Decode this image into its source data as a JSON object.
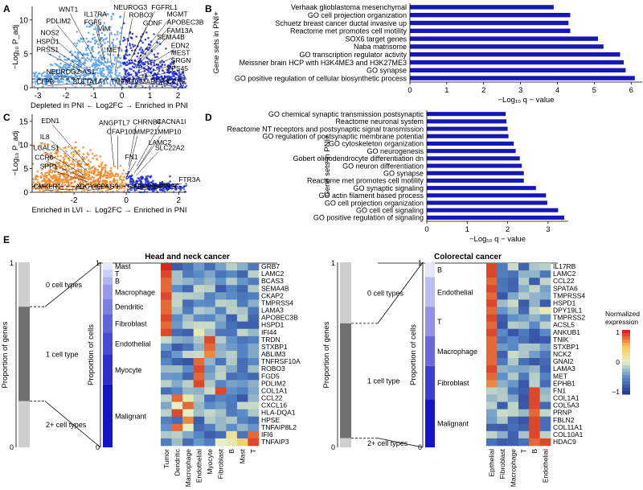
{
  "panel_letters": {
    "a": "A",
    "b": "B",
    "c": "C",
    "d": "D",
    "e": "E"
  },
  "colors": {
    "blue_dark": "#1c2bd6",
    "blue_light": "#5aa0ea",
    "orange": "#ef8a2b",
    "bar": "#1717b8",
    "grey_dark": "#707070",
    "grey_light": "#cfcfcf"
  },
  "chart_data": [
    {
      "id": "A",
      "type": "scatter",
      "ylabel": "−Log₁₀ P_adj",
      "xlabel_left": "Depleted in PNI",
      "xlabel_mid": " ← Log2FC → ",
      "xlabel_right": "Enriched in PNI",
      "xlim": [
        -3.2,
        2.3
      ],
      "ylim": [
        0,
        12
      ],
      "xticks": [
        -3,
        -2,
        -1,
        0,
        1,
        2
      ],
      "yticks": [
        0,
        5,
        10
      ],
      "threshold_y": 1.3,
      "density": [
        {
          "x": -2.6,
          "y": 2.3,
          "s": 0.9
        },
        {
          "x": -2.2,
          "y": 3.6,
          "s": 0.9
        },
        {
          "x": -1.7,
          "y": 5.4,
          "s": 1.0
        },
        {
          "x": -1.2,
          "y": 7.5,
          "s": 1.1
        },
        {
          "x": -0.7,
          "y": 9.8,
          "s": 1.1
        },
        {
          "x": -0.3,
          "y": 11.2,
          "s": 0.8
        },
        {
          "x": -0.6,
          "y": 4.5,
          "s": 2.0
        },
        {
          "x": 0.4,
          "y": 8.5,
          "s": 1.0
        },
        {
          "x": 0.9,
          "y": 6.5,
          "s": 1.0
        },
        {
          "x": 1.4,
          "y": 4.0,
          "s": 1.0
        },
        {
          "x": 1.9,
          "y": 2.4,
          "s": 0.8
        }
      ],
      "labels": [
        {
          "text": "WNT1",
          "x": -2.25,
          "y": 11.2
        },
        {
          "text": "IL17RA",
          "x": -1.35,
          "y": 10.5
        },
        {
          "text": "NEUROG3",
          "x": -0.3,
          "y": 11.5
        },
        {
          "text": "FGFRL1",
          "x": 1.05,
          "y": 11.5
        },
        {
          "text": "PDLIM2",
          "x": -2.7,
          "y": 9.5
        },
        {
          "text": "FGF5",
          "x": -1.35,
          "y": 9.3
        },
        {
          "text": "ROBO3",
          "x": 0.25,
          "y": 10.4
        },
        {
          "text": "MGMT",
          "x": 1.6,
          "y": 10.5
        },
        {
          "text": "VIM",
          "x": -0.85,
          "y": 8.4
        },
        {
          "text": "GDNF",
          "x": 0.75,
          "y": 9.2
        },
        {
          "text": "APOBEC3B",
          "x": 1.6,
          "y": 9.3
        },
        {
          "text": "NOS2",
          "x": -2.9,
          "y": 7.8
        },
        {
          "text": "FAM13A",
          "x": 1.6,
          "y": 8.1
        },
        {
          "text": "HSPD1",
          "x": -3.05,
          "y": 6.5
        },
        {
          "text": "SEMA4B",
          "x": 1.25,
          "y": 7.1
        },
        {
          "text": "MET",
          "x": -0.55,
          "y": 5.2
        },
        {
          "text": "EDN2",
          "x": 1.75,
          "y": 5.9
        },
        {
          "text": "PRSS1",
          "x": -3.05,
          "y": 5.3
        },
        {
          "text": "MEST",
          "x": 1.75,
          "y": 4.8
        },
        {
          "text": "SRGN",
          "x": 1.75,
          "y": 3.7
        },
        {
          "text": "VPS45",
          "x": 1.6,
          "y": 2.5
        },
        {
          "text": "NEUROG2-AS1",
          "x": -2.7,
          "y": 2.0
        },
        {
          "text": "CLPB",
          "x": -3.05,
          "y": 0.55
        },
        {
          "text": "SULTA1A1",
          "x": -1.75,
          "y": 0.55
        },
        {
          "text": "TMEM79",
          "x": -0.4,
          "y": 0.55
        },
        {
          "text": "MARCKS",
          "x": 0.65,
          "y": 0.55
        },
        {
          "text": "CCN5",
          "x": 1.6,
          "y": 0.55
        }
      ]
    },
    {
      "id": "B",
      "type": "bar",
      "ylabel": "Gene sets in PNI+",
      "xlabel": "−Log₁₀ q − value",
      "xlim": [
        0,
        6.3
      ],
      "xticks": [
        0,
        1,
        2,
        3,
        4,
        5,
        6
      ],
      "categories": [
        "Verhaak glioblastoma mesenchymal",
        "GO cell projection organization",
        "Schuetz breast cancer ductal invasive up",
        "Reactome met promotes cell motility",
        "SOX6 target genes",
        "Naba matrisome",
        "GO transcription regulator activity",
        "Meissner brain HCP with H3K4ME3 and H3K27ME3",
        "GO synapse",
        "GO positive regulation of cellular biosynthetic process"
      ],
      "values": [
        3.9,
        4.35,
        4.3,
        4.35,
        5.1,
        5.25,
        5.7,
        5.8,
        5.85,
        6.1
      ]
    },
    {
      "id": "C",
      "type": "scatter",
      "ylabel": "−Log₁₀ P_adj",
      "xlabel_left": "Enriched in LVI",
      "xlabel_mid": " ← Log2FC → ",
      "xlabel_right": "Enriched in PNI",
      "xlim": [
        -3.6,
        2.3
      ],
      "ylim": [
        0,
        16.5
      ],
      "xticks": [
        -2,
        0,
        2
      ],
      "yticks": [
        0,
        5,
        10,
        15
      ],
      "threshold_y": 1.3,
      "density": [
        {
          "x": -3.1,
          "y": 3.5,
          "s": 1.2
        },
        {
          "x": -2.5,
          "y": 6.5,
          "s": 1.4
        },
        {
          "x": -2.0,
          "y": 9.5,
          "s": 1.3
        },
        {
          "x": -1.5,
          "y": 8.0,
          "s": 1.2
        },
        {
          "x": -1.0,
          "y": 6.0,
          "s": 1.3
        },
        {
          "x": -0.6,
          "y": 4.0,
          "s": 1.5
        },
        {
          "x": -2.8,
          "y": 11.0,
          "s": 0.9
        },
        {
          "x": 0.5,
          "y": 3.5,
          "s": 1.0
        },
        {
          "x": 1.0,
          "y": 2.5,
          "s": 0.8
        },
        {
          "x": 1.5,
          "y": 2.0,
          "s": 0.7
        }
      ],
      "labels": [
        {
          "text": "EDN1",
          "x": -3.25,
          "y": 14.6
        },
        {
          "text": "ANGPTL7",
          "x": -1.05,
          "y": 14.2
        },
        {
          "text": "CHRNB4",
          "x": 0.25,
          "y": 14.4
        },
        {
          "text": "CACNA1I",
          "x": 1.15,
          "y": 14.5
        },
        {
          "text": "CFAP100",
          "x": -0.75,
          "y": 12.3
        },
        {
          "text": "MMP21",
          "x": 0.3,
          "y": 12.3
        },
        {
          "text": "MMP10",
          "x": 1.2,
          "y": 12.3
        },
        {
          "text": "IL8",
          "x": -3.3,
          "y": 11.2
        },
        {
          "text": "LAMC2",
          "x": 0.85,
          "y": 10.0
        },
        {
          "text": "LGALS1",
          "x": -3.55,
          "y": 8.9
        },
        {
          "text": "SLC22A2",
          "x": 1.1,
          "y": 8.9
        },
        {
          "text": "CCR6",
          "x": -3.5,
          "y": 6.9
        },
        {
          "text": "FN1",
          "x": -0.05,
          "y": 7.0
        },
        {
          "text": "SPP1",
          "x": -3.3,
          "y": 5.0
        },
        {
          "text": "FTR3A",
          "x": 2.0,
          "y": 2.2
        },
        {
          "text": "CMKLR1",
          "x": -3.55,
          "y": 0.75
        },
        {
          "text": "ADCY6",
          "x": -1.95,
          "y": 0.75
        },
        {
          "text": "SPAG9",
          "x": -1.15,
          "y": 0.75
        },
        {
          "text": "GABRR1",
          "x": 0.05,
          "y": 0.75
        },
        {
          "text": "GRIN2C",
          "x": 1.05,
          "y": 0.75
        }
      ]
    },
    {
      "id": "D",
      "type": "bar",
      "ylabel": "Gene sets in PNI+",
      "xlabel": "−Log₁₀ q − value",
      "xlim": [
        0,
        3.5
      ],
      "xticks": [
        0,
        1,
        2,
        3
      ],
      "categories": [
        "GO chemical synaptic transmission postsynaptic",
        "Reactome neuronal system",
        "Reactome NT receptors and postsynaptic signal transmission",
        "GO regulation of postsynaptic membrane potential",
        "GO cytoskeleton organization",
        "GO neurogenesis",
        "Gobert oligodendrocyte differentiation dn",
        "GO neuron differentiation",
        "GO synapse",
        "Reactome met promotes cell motility",
        "GO synaptic signaling",
        "GO actin filament based process",
        "GO cell projection organization",
        "GO cell cell signaling",
        "GO positive regulation of signaling"
      ],
      "values": [
        1.95,
        1.97,
        2.0,
        2.02,
        2.15,
        2.2,
        2.3,
        2.35,
        2.4,
        2.4,
        2.7,
        2.95,
        2.98,
        3.25,
        3.4
      ]
    },
    {
      "id": "E1",
      "type": "heatmap",
      "title": "Head and neck cancer",
      "prop_genes_label": "Proportion of genes",
      "prop_cells_label": "Proportion of cells",
      "stack_groups": [
        "0 cell types",
        "1 cell type",
        "2+ cell types"
      ],
      "stack_props": [
        0.24,
        0.51,
        0.25
      ],
      "cell_types": [
        "Mast",
        "T",
        "B",
        "Macrophage",
        "Dendritic",
        "Fibroblast",
        "Endothelial",
        "Myocyte",
        "Malignant"
      ],
      "cell_props": [
        0.04,
        0.04,
        0.04,
        0.08,
        0.08,
        0.1,
        0.12,
        0.16,
        0.34
      ],
      "columns": [
        "Tumor",
        "Dendritic",
        "Macrophage",
        "Endothelial",
        "Myocyte",
        "Fibroblast",
        "B",
        "Mast",
        "T"
      ],
      "genes": [
        "GRB7",
        "LAMC2",
        "BCAS3",
        "SEMA4B",
        "CKAP2",
        "TMPRSS4",
        "LAMA3",
        "APOBEC3B",
        "HSPD1",
        "IFI44",
        "TRDN",
        "STXBP1",
        "ABLIM3",
        "TNFRSF10A",
        "ROBO3",
        "FGD5",
        "PDLIM2",
        "COL1A1",
        "CCL22",
        "CXCL16",
        "HLA-DQA1",
        "HPSE",
        "TNFAIP8L2",
        "IFI6",
        "TNFAIP3"
      ],
      "hot_cells": [
        [
          0,
          0,
          1.0
        ],
        [
          1,
          0,
          0.95
        ],
        [
          2,
          0,
          0.9
        ],
        [
          3,
          0,
          0.9
        ],
        [
          4,
          0,
          0.95
        ],
        [
          5,
          0,
          0.9
        ],
        [
          6,
          0,
          0.9
        ],
        [
          7,
          0,
          0.95
        ],
        [
          8,
          0,
          0.9
        ],
        [
          9,
          0,
          0.95
        ],
        [
          8,
          3,
          0.45
        ],
        [
          9,
          3,
          0.55
        ],
        [
          2,
          2,
          0.35
        ],
        [
          0,
          5,
          0.3
        ],
        [
          10,
          4,
          0.95
        ],
        [
          11,
          4,
          0.9
        ],
        [
          12,
          4,
          0.85
        ],
        [
          13,
          3,
          0.9
        ],
        [
          14,
          3,
          0.95
        ],
        [
          15,
          3,
          0.9
        ],
        [
          16,
          3,
          0.95
        ],
        [
          10,
          3,
          0.4
        ],
        [
          12,
          3,
          0.45
        ],
        [
          17,
          5,
          0.95
        ],
        [
          18,
          1,
          0.9
        ],
        [
          18,
          2,
          0.55
        ],
        [
          19,
          2,
          0.9
        ],
        [
          20,
          1,
          0.95
        ],
        [
          20,
          2,
          0.5
        ],
        [
          21,
          2,
          0.85
        ],
        [
          22,
          1,
          0.9
        ],
        [
          22,
          2,
          0.5
        ],
        [
          23,
          8,
          0.9
        ],
        [
          23,
          6,
          0.6
        ],
        [
          24,
          8,
          0.95
        ],
        [
          24,
          7,
          0.7
        ],
        [
          24,
          6,
          0.55
        ],
        [
          17,
          4,
          0.45
        ],
        [
          19,
          1,
          0.5
        ],
        [
          21,
          6,
          0.4
        ],
        [
          23,
          0,
          0.4
        ],
        [
          24,
          5,
          0.5
        ],
        [
          16,
          4,
          0.4
        ],
        [
          13,
          4,
          0.35
        ]
      ]
    },
    {
      "id": "E2",
      "type": "heatmap",
      "title": "Colorectal cancer",
      "prop_genes_label": "Proportion of genes",
      "prop_cells_label": "Proportion of cells",
      "stack_groups": [
        "0 cell types",
        "1 cell type",
        "2+ cell types"
      ],
      "stack_props": [
        0.33,
        0.62,
        0.05
      ],
      "cell_types": [
        "B",
        "Endothelial",
        "T",
        "Macrophage",
        "Fibroblast",
        "Malignant"
      ],
      "cell_props": [
        0.08,
        0.16,
        0.16,
        0.16,
        0.18,
        0.26
      ],
      "columns": [
        "Epithelial",
        "Fibroblast",
        "Macrophage",
        "T",
        "B",
        "Endothelial"
      ],
      "genes": [
        "IL17RB",
        "LAMC2",
        "CCL22",
        "SPATA6",
        "TMPRSS4",
        "HSPD1",
        "DPY19L1",
        "TMPRSS2",
        "ACSL5",
        "ANKUB1",
        "TNIK",
        "STXBP1",
        "NCK2",
        "GNAI2",
        "LAMA3",
        "MET",
        "EPHB1",
        "FN1",
        "COL1A1",
        "COL5A3",
        "PRNP",
        "FBLN2",
        "COL11A1",
        "COL10A1",
        "HDAC9"
      ],
      "hot_cells": [
        [
          0,
          0,
          0.95
        ],
        [
          1,
          0,
          0.95
        ],
        [
          2,
          0,
          0.9
        ],
        [
          3,
          0,
          0.95
        ],
        [
          4,
          0,
          0.9
        ],
        [
          5,
          0,
          0.95
        ],
        [
          6,
          0,
          0.9
        ],
        [
          7,
          0,
          0.95
        ],
        [
          8,
          0,
          0.9
        ],
        [
          9,
          0,
          0.95
        ],
        [
          10,
          0,
          0.9
        ],
        [
          11,
          0,
          0.9
        ],
        [
          12,
          0,
          0.9
        ],
        [
          13,
          0,
          0.9
        ],
        [
          14,
          0,
          0.95
        ],
        [
          15,
          0,
          0.9
        ],
        [
          16,
          0,
          0.85
        ],
        [
          6,
          5,
          0.55
        ],
        [
          5,
          4,
          0.35
        ],
        [
          12,
          2,
          0.45
        ],
        [
          13,
          2,
          0.4
        ],
        [
          14,
          1,
          0.35
        ],
        [
          17,
          4,
          0.95
        ],
        [
          18,
          4,
          0.95
        ],
        [
          19,
          4,
          0.95
        ],
        [
          20,
          4,
          0.9
        ],
        [
          21,
          4,
          0.95
        ],
        [
          22,
          4,
          0.95
        ],
        [
          23,
          4,
          0.95
        ],
        [
          24,
          4,
          0.9
        ],
        [
          24,
          5,
          0.95
        ],
        [
          17,
          1,
          0.4
        ],
        [
          20,
          1,
          0.45
        ],
        [
          21,
          1,
          0.4
        ]
      ]
    }
  ],
  "legend": {
    "title": "Normalized expression",
    "max_label": "1",
    "mid_label": "0",
    "min_label": "−1"
  }
}
